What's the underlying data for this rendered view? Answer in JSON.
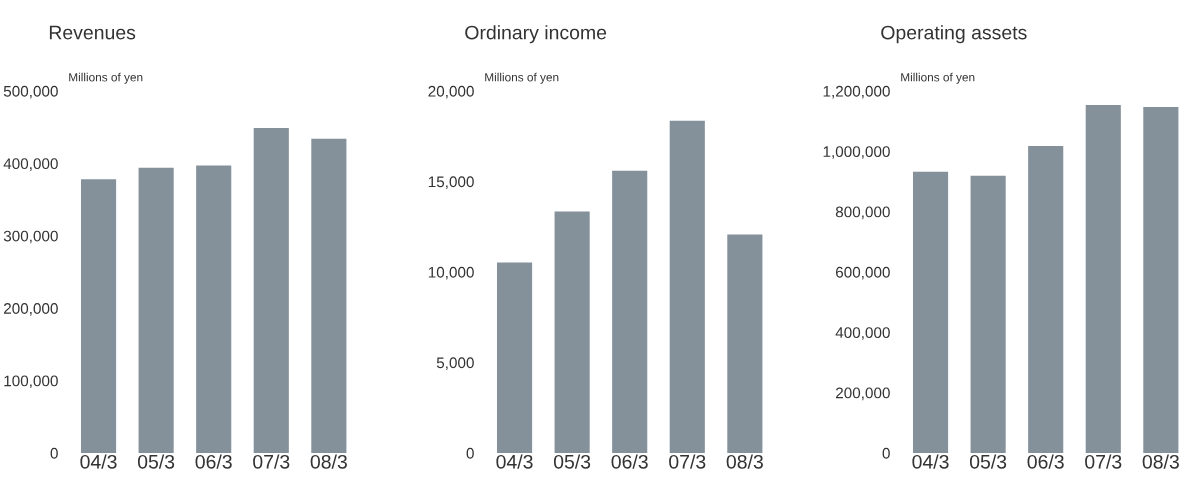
{
  "chart_data": [
    {
      "type": "bar",
      "title": "Revenues",
      "ylabel": "Millions of yen",
      "categories": [
        "04/3",
        "05/3",
        "06/3",
        "07/3",
        "08/3"
      ],
      "values": [
        378000,
        394000,
        397000,
        449000,
        434000
      ],
      "color": "#84909a",
      "ylim": [
        0,
        500000
      ],
      "yticks": [
        0,
        {
          "value": 100000,
          "label": "100,000"
        },
        {
          "value": 200000,
          "label": "200,000"
        },
        {
          "value": 300000,
          "label": "300,000"
        },
        {
          "value": 400000,
          "label": "400,000"
        },
        {
          "value": 500000,
          "label": "500,000"
        }
      ],
      "grid": false,
      "legend": false
    },
    {
      "type": "bar",
      "title": "Ordinary income",
      "ylabel": "Millions of yen",
      "categories": [
        "04/3",
        "05/3",
        "06/3",
        "07/3",
        "08/3"
      ],
      "values": [
        10530,
        13340,
        15600,
        18350,
        12070
      ],
      "color": "#84909a",
      "ylim": [
        0,
        20000
      ],
      "yticks": [
        0,
        {
          "value": 5000,
          "label": "5,000"
        },
        {
          "value": 10000,
          "label": "10,000"
        },
        {
          "value": 15000,
          "label": "15,000"
        },
        {
          "value": 20000,
          "label": "20,000"
        }
      ],
      "grid": false,
      "legend": false
    },
    {
      "type": "bar",
      "title": "Operating assets",
      "ylabel": "Millions of yen",
      "categories": [
        "04/3",
        "05/3",
        "06/3",
        "07/3",
        "08/3"
      ],
      "values": [
        932000,
        919000,
        1018000,
        1154000,
        1147000
      ],
      "color": "#84909a",
      "ylim": [
        0,
        1200000
      ],
      "yticks": [
        0,
        {
          "value": 200000,
          "label": "200,000"
        },
        {
          "value": 400000,
          "label": "400,000"
        },
        {
          "value": 600000,
          "label": "600,000"
        },
        {
          "value": 800000,
          "label": "800,000"
        },
        {
          "value": 1000000,
          "label": "1,000,000"
        },
        {
          "value": 1200000,
          "label": "1,200,000"
        }
      ],
      "grid": false,
      "legend": false
    }
  ]
}
